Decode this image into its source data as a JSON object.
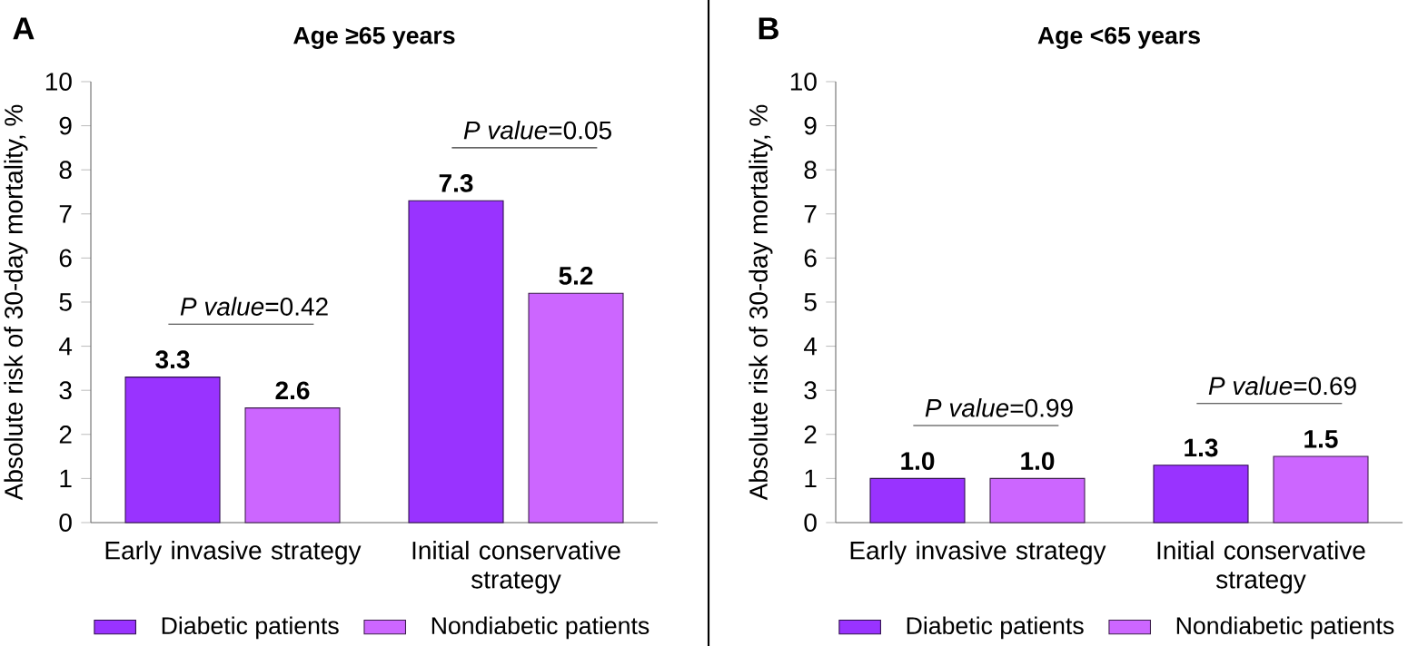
{
  "chart_data": [
    {
      "type": "bar",
      "title": "Age ≥65 years",
      "ylabel": "Absolute risk of 30-day mortality, %",
      "categories": [
        "Early invasive strategy",
        "Initial conservative strategy"
      ],
      "series": [
        {
          "name": "Diabetic patients",
          "color": "#9933ff",
          "values": [
            3.3,
            7.3
          ],
          "value_labels": [
            "3.3",
            "7.3"
          ]
        },
        {
          "name": "Nondiabetic patients",
          "color": "#cc66ff",
          "values": [
            2.6,
            5.2
          ],
          "value_labels": [
            "2.6",
            "5.2"
          ]
        }
      ],
      "ylim": [
        0,
        10
      ],
      "yticks": [
        0,
        1,
        2,
        3,
        4,
        5,
        6,
        7,
        8,
        9,
        10
      ],
      "grid": false,
      "legend": "bottom",
      "annotations": [
        "A",
        "*P value*=0.42",
        "*P value*=0.05"
      ]
    },
    {
      "type": "bar",
      "title": "Age <65 years",
      "ylabel": "Absolute risk of 30-day mortality, %",
      "categories": [
        "Early invasive strategy",
        "Initial conservative strategy"
      ],
      "series": [
        {
          "name": "Diabetic patients",
          "color": "#9933ff",
          "values": [
            1.0,
            1.3
          ],
          "value_labels": [
            "1.0",
            "1.3"
          ]
        },
        {
          "name": "Nondiabetic patients",
          "color": "#cc66ff",
          "values": [
            1.0,
            1.5
          ],
          "value_labels": [
            "1.0",
            "1.5"
          ]
        }
      ],
      "ylim": [
        0,
        10
      ],
      "yticks": [
        0,
        1,
        2,
        3,
        4,
        5,
        6,
        7,
        8,
        9,
        10
      ],
      "grid": false,
      "legend": "bottom",
      "annotations": [
        "B",
        "*P value*=0.99",
        "*P value*=0.69"
      ]
    }
  ]
}
